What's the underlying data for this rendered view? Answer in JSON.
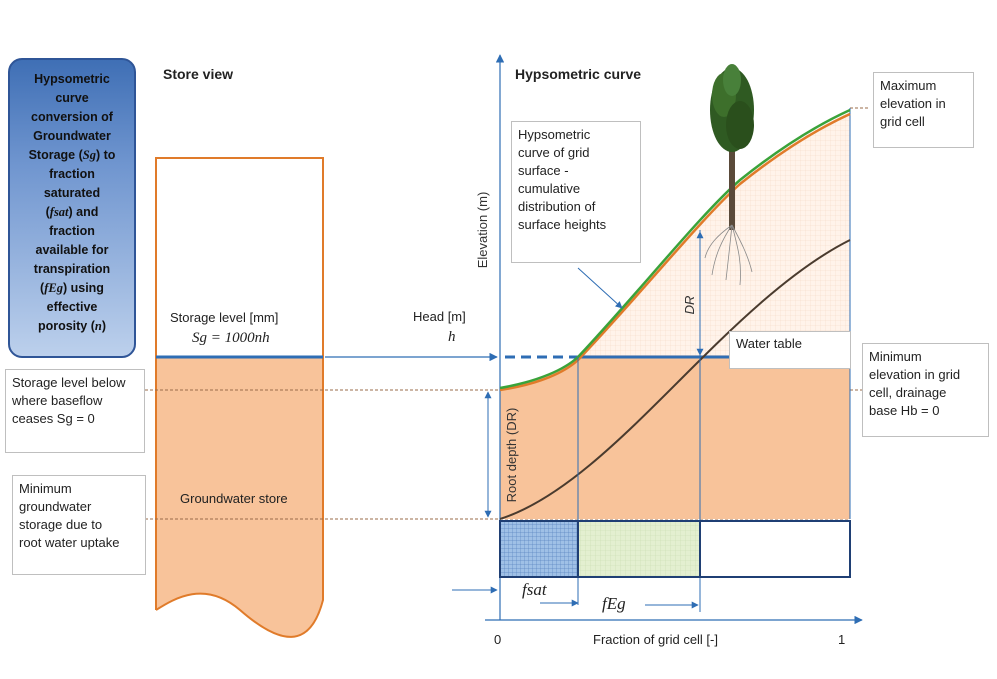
{
  "title_box": {
    "lines": [
      "Hypsometric",
      "curve",
      "conversion of",
      "Groundwater",
      "Storage (",
      "Sg",
      ") to",
      "fraction",
      "saturated",
      "(",
      "fsat",
      ")  and",
      "fraction",
      "available for",
      "transpiration",
      "(",
      "fEg",
      ") using",
      "effective",
      "porosity (",
      "n",
      ")"
    ]
  },
  "store_view": {
    "title": "Store view",
    "storage_level_label": "Storage level [mm]",
    "storage_level_eq": "Sg = 1000nh",
    "groundwater_store": "Groundwater store"
  },
  "callouts": {
    "baseflow": "Storage level below where baseflow ceases Sg = 0",
    "baseflow_lines": [
      "Storage level below",
      "where baseflow",
      "ceases Sg = 0"
    ],
    "min_storage_lines": [
      "Minimum",
      "groundwater",
      "storage due to",
      "root water uptake"
    ],
    "max_elev_lines": [
      "Maximum",
      "elevation in",
      "grid cell"
    ],
    "min_elev_lines": [
      "Minimum",
      "elevation in grid",
      "cell, drainage",
      "base Hb = 0"
    ],
    "hyps_lines": [
      "Hypsometric",
      "curve of grid",
      "surface -",
      "cumulative",
      "distribution of",
      "surface heights"
    ]
  },
  "hypsometric": {
    "title": "Hypsometric curve",
    "head_label": "Head [m]",
    "head_symbol": "h",
    "water_table": "Water table",
    "y_axis": "Elevation (m)",
    "root_depth": "Root depth (DR)",
    "dr_label": "DR",
    "x_axis": "Fraction of grid cell [-]",
    "x_min": "0",
    "x_max": "1",
    "fsat": "fsat",
    "feg": "fEg"
  },
  "colors": {
    "orange": "#f8c39a",
    "orange_line": "#e07b2a",
    "blue": "#2e6db4",
    "green": "#3aa33a",
    "dark_curve": "#4a3b2e"
  }
}
